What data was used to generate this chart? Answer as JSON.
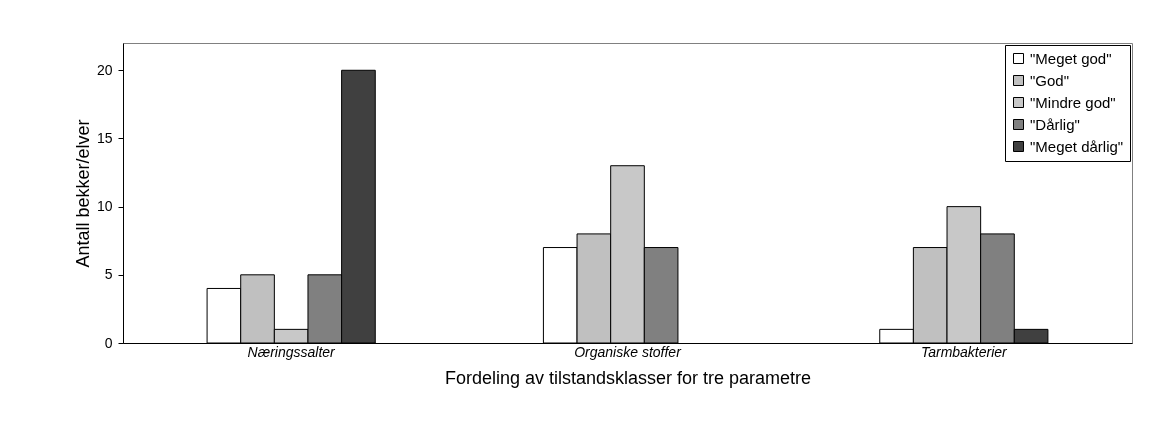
{
  "chart_data": {
    "type": "bar",
    "xlabel": "Fordeling av tilstandsklasser for tre parametre",
    "ylabel": "Antall bekker/elver",
    "categories": [
      "Næringssalter",
      "Organiske stoffer",
      "Tarmbakterier"
    ],
    "series": [
      {
        "name": "\"Meget god\"",
        "color": "#ffffff",
        "values": [
          4,
          7,
          1
        ]
      },
      {
        "name": "\"God\"",
        "color": "#c0c0c0",
        "values": [
          5,
          8,
          7
        ]
      },
      {
        "name": "\"Mindre god\"",
        "color": "#c8c8c8",
        "values": [
          1,
          13,
          10
        ]
      },
      {
        "name": "\"Dårlig\"",
        "color": "#808080",
        "values": [
          5,
          7,
          8
        ]
      },
      {
        "name": "\"Meget dårlig\"",
        "color": "#404040",
        "values": [
          20,
          null,
          1
        ]
      }
    ],
    "ylim": [
      0,
      22
    ],
    "yticks": [
      0,
      5,
      10,
      15,
      20
    ],
    "grid": false,
    "legend": "top right"
  }
}
